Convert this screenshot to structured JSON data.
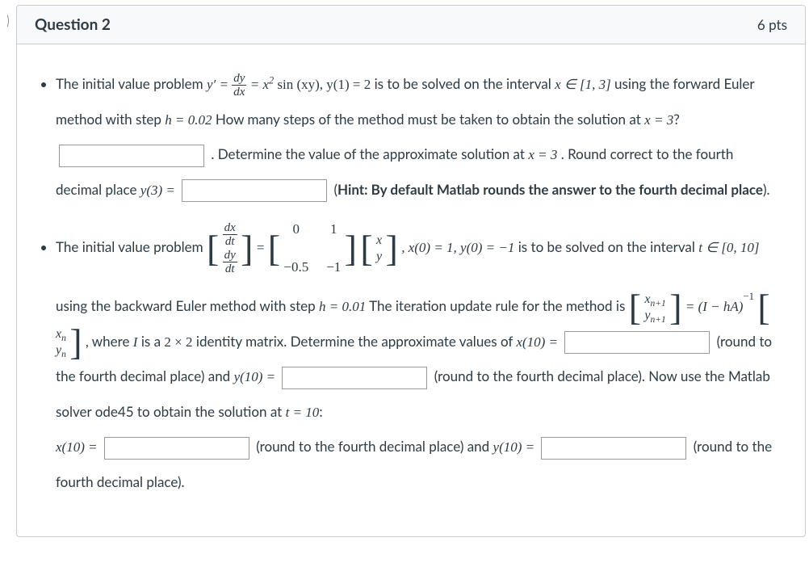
{
  "header": {
    "title": "Question 2",
    "points": "6 pts"
  },
  "p1": {
    "t1": "The initial value problem ",
    "t2": " is to be solved on the interval ",
    "t3": " using the forward Euler method with step ",
    "t4": " How many steps of the method must be taken to obtain the solution at ",
    "t5_q": "?",
    "t6": ". Determine the value of the approximate solution at ",
    "t7": ". Round correct to the fourth decimal place ",
    "hint_open": " (",
    "hint_label": "Hint: By default Matlab rounds the answer to the fourth decimal place",
    "hint_close": ").",
    "math": {
      "yprime": "y′ = ",
      "frac_num": "dy",
      "frac_den": "dx",
      "eq2": " = x",
      "sq": "2",
      "sinpart": " sin (xy),   y(1) = 2",
      "interval": "x ∈ [1, 3]",
      "step": "h = 0.02",
      "at": "x = 3",
      "y3": "y(3) = "
    }
  },
  "p2": {
    "t1": "The initial value problem ",
    "t2": " is to be solved on the interval ",
    "t3": " using the backward Euler method with step ",
    "t4": " The iteration update rule for the method is ",
    "t5": ", where ",
    "t6": " is a ",
    "t7": " identity matrix. Determine the approximate values of ",
    "t8": " (round to the fourth decimal place) and ",
    "t9": " (round to the fourth decimal place). Now use the Matlab solver ode45 to obtain the solution at ",
    "t10": ":",
    "t11": " (round to the fourth decimal place) and ",
    "t12": " (round to the fourth decimal place).",
    "math": {
      "dxdt_num": "dx",
      "dxdt_den": "dt",
      "dydt_num": "dy",
      "dydt_den": "dt",
      "m00": "0",
      "m01": "1",
      "m10": "−0.5",
      "m11": "−1",
      "vx": "x",
      "vy": "y",
      "ics": ", x(0) = 1, y(0) = −1",
      "tinterval": "t ∈ [0, 10]",
      "step": "h = 0.01",
      "xn1": "x",
      "xn1sub": "n+1",
      "yn1": "y",
      "yn1sub": "n+1",
      "iter": " = (I − hA)",
      "inv": "−1",
      "xn": "x",
      "xnsub": "n",
      "yn": "y",
      "ynsub": "n",
      "Ivar": "I",
      "twoby": "2 × 2",
      "x10": "x(10) = ",
      "y10": "y(10) = ",
      "t10": "t = 10"
    }
  }
}
